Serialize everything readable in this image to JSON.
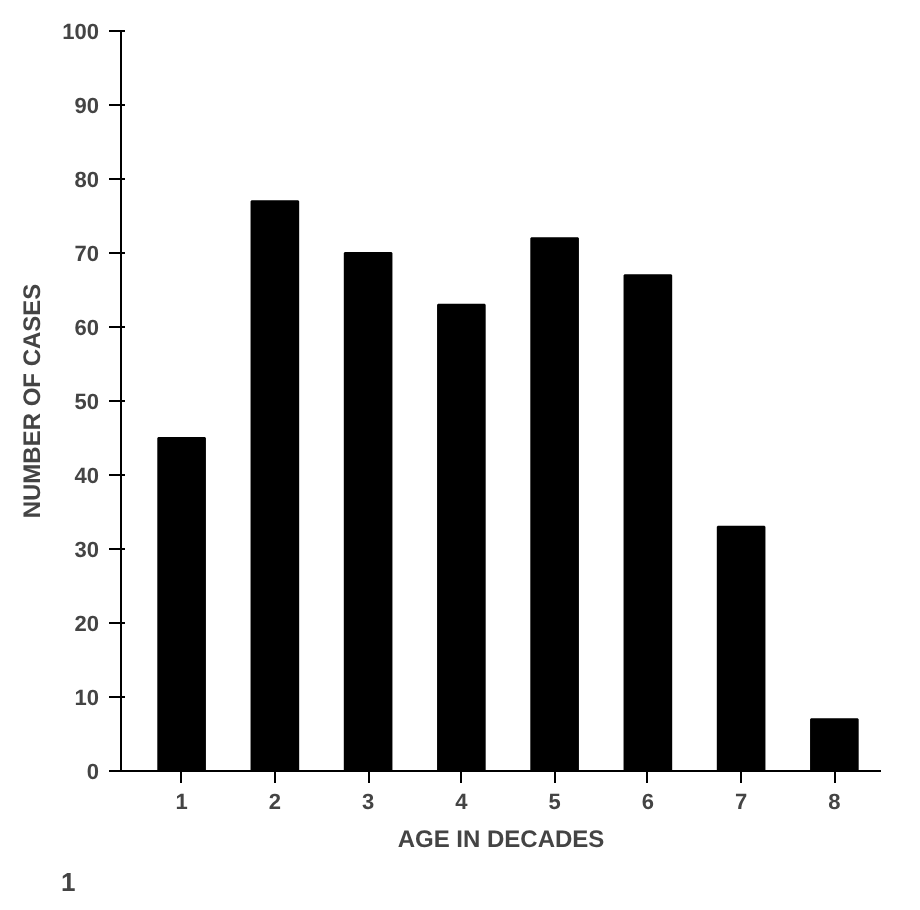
{
  "chart_data": {
    "type": "bar",
    "xlabel": "AGE IN DECADES",
    "ylabel": "NUMBER OF CASES",
    "categories": [
      "1",
      "2",
      "3",
      "4",
      "5",
      "6",
      "7",
      "8"
    ],
    "values": [
      45,
      77,
      70,
      63,
      72,
      67,
      33,
      7
    ],
    "color": "#000000",
    "ylim": [
      0,
      100
    ],
    "yticks": [
      0,
      10,
      20,
      30,
      40,
      50,
      60,
      70,
      80,
      90,
      100
    ],
    "grid": false,
    "annotations": [
      "1"
    ]
  }
}
